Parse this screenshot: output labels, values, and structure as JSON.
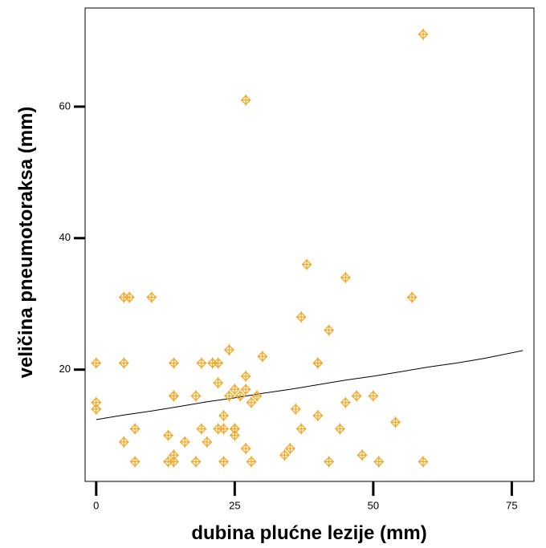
{
  "chart_data": {
    "type": "scatter",
    "title": "",
    "xlabel": "dubina plućne lezije (mm)",
    "ylabel": "veličina pneumotoraksa (mm)",
    "xlim": [
      -2,
      79
    ],
    "ylim": [
      3,
      75
    ],
    "xticks": [
      0,
      25,
      50,
      75
    ],
    "yticks": [
      20,
      40,
      60
    ],
    "grid": false,
    "marker_color": "#F5A623",
    "line_color": "#000000",
    "series": [
      {
        "type": "scatter",
        "points": [
          [
            0,
            21
          ],
          [
            0,
            15
          ],
          [
            0,
            14
          ],
          [
            5,
            31
          ],
          [
            6,
            31
          ],
          [
            5,
            21
          ],
          [
            5,
            9
          ],
          [
            7,
            11
          ],
          [
            7,
            6
          ],
          [
            10,
            31
          ],
          [
            13,
            10
          ],
          [
            13,
            6
          ],
          [
            14,
            7
          ],
          [
            14,
            16
          ],
          [
            14,
            16
          ],
          [
            14,
            21
          ],
          [
            14,
            6
          ],
          [
            16,
            9
          ],
          [
            18,
            16
          ],
          [
            18,
            6
          ],
          [
            19,
            21
          ],
          [
            19,
            11
          ],
          [
            20,
            9
          ],
          [
            21,
            21
          ],
          [
            22,
            21
          ],
          [
            22,
            18
          ],
          [
            22,
            11
          ],
          [
            23,
            13
          ],
          [
            23,
            11
          ],
          [
            23,
            6
          ],
          [
            24,
            23
          ],
          [
            24,
            16
          ],
          [
            25,
            17
          ],
          [
            25,
            11
          ],
          [
            25,
            11
          ],
          [
            25,
            10
          ],
          [
            26,
            16
          ],
          [
            27,
            61
          ],
          [
            27,
            19
          ],
          [
            27,
            17
          ],
          [
            27,
            8
          ],
          [
            28,
            15
          ],
          [
            28,
            6
          ],
          [
            29,
            16
          ],
          [
            30,
            22
          ],
          [
            34,
            7
          ],
          [
            35,
            8
          ],
          [
            36,
            14
          ],
          [
            37,
            28
          ],
          [
            37,
            11
          ],
          [
            38,
            36
          ],
          [
            40,
            21
          ],
          [
            40,
            21
          ],
          [
            40,
            13
          ],
          [
            42,
            26
          ],
          [
            42,
            6
          ],
          [
            44,
            11
          ],
          [
            45,
            34
          ],
          [
            45,
            15
          ],
          [
            47,
            16
          ],
          [
            48,
            7
          ],
          [
            50,
            16
          ],
          [
            51,
            6
          ],
          [
            54,
            12
          ],
          [
            57,
            31
          ],
          [
            59,
            71
          ],
          [
            59,
            6
          ]
        ]
      },
      {
        "type": "line",
        "points": [
          [
            0,
            12.4
          ],
          [
            5,
            13.1
          ],
          [
            10,
            13.7
          ],
          [
            15,
            14.4
          ],
          [
            20,
            15.1
          ],
          [
            25,
            15.7
          ],
          [
            30,
            16.4
          ],
          [
            35,
            17.0
          ],
          [
            40,
            17.7
          ],
          [
            45,
            18.4
          ],
          [
            50,
            19.0
          ],
          [
            55,
            19.7
          ],
          [
            60,
            20.4
          ],
          [
            65,
            21.0
          ],
          [
            70,
            21.7
          ],
          [
            77,
            22.9
          ]
        ]
      }
    ]
  }
}
